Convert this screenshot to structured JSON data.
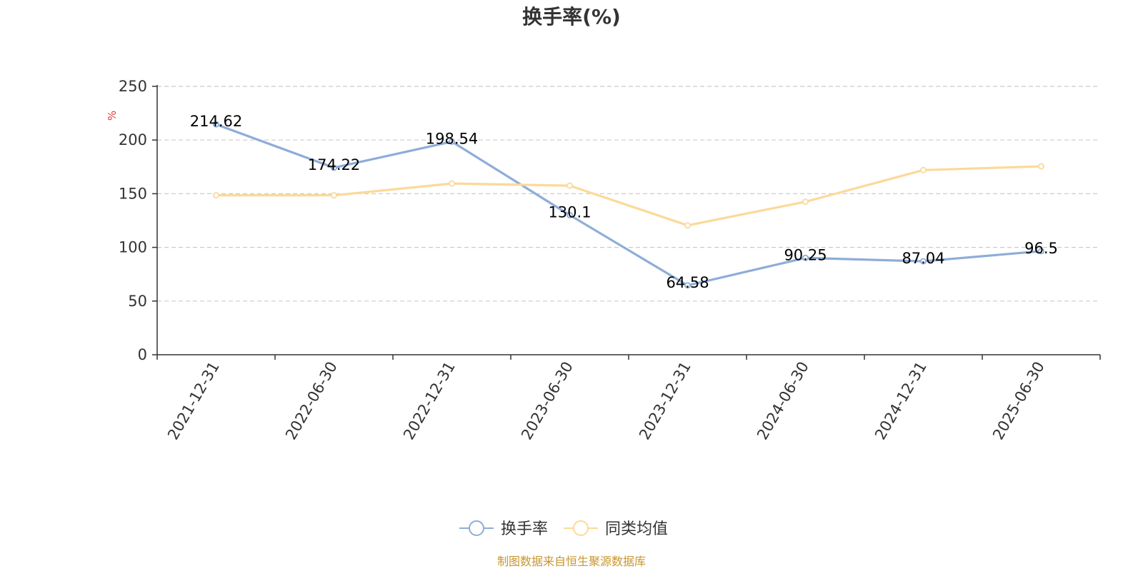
{
  "chart": {
    "title": "换手率(%)",
    "unit_label": "%",
    "source": "制图数据来自恒生聚源数据库",
    "legend_placement": "bottom-center"
  },
  "chart_data": {
    "type": "line",
    "title": "换手率(%)",
    "xlabel": "",
    "ylabel": "%",
    "categories": [
      "2021-12-31",
      "2022-06-30",
      "2022-12-31",
      "2023-06-30",
      "2023-12-31",
      "2024-06-30",
      "2024-12-31",
      "2025-06-30"
    ],
    "yticks": [
      0,
      50,
      100,
      150,
      200,
      250
    ],
    "ylim": [
      0,
      250
    ],
    "grid": true,
    "series": [
      {
        "name": "换手率",
        "color": "#8eadd8",
        "values": [
          214.62,
          174.22,
          198.54,
          130.1,
          64.58,
          90.25,
          87.04,
          96.5
        ],
        "labels": [
          "214.62",
          "174.22",
          "198.54",
          "130.1",
          "64.58",
          "90.25",
          "87.04",
          "96.5"
        ],
        "show_labels": true
      },
      {
        "name": "同类均值",
        "color": "#fcd999",
        "values": [
          148.5,
          148.5,
          159.5,
          157.5,
          120.5,
          142.5,
          172,
          175.5
        ],
        "show_labels": false
      }
    ]
  }
}
